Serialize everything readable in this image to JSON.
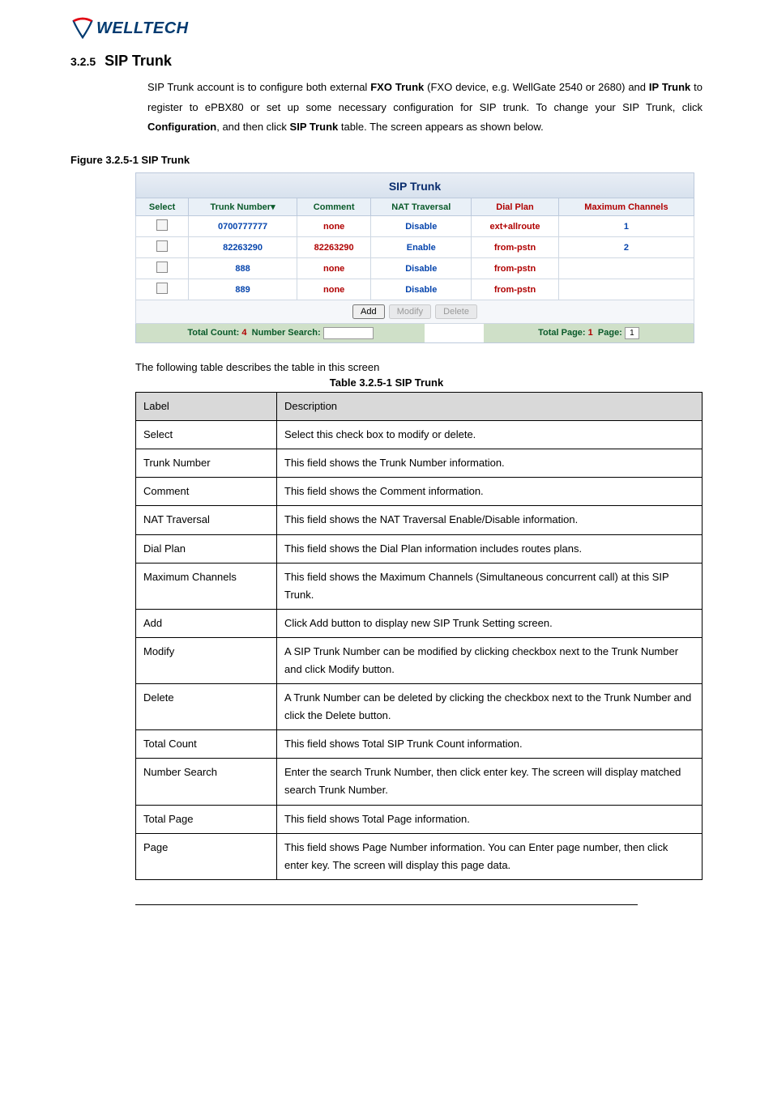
{
  "logo": {
    "text": "WELLTECH"
  },
  "section": {
    "num": "3.2.5",
    "title": "SIP Trunk"
  },
  "intro": "SIP Trunk account is to configure both external <b>FXO Trunk</b> (FXO device, e.g. WellGate 2540 or 2680) and <b>IP Trunk</b> to register to ePBX80 or set up some necessary configuration for SIP trunk. To change your SIP Trunk, click <b>Configuration</b>, and then click <b>SIP Trunk</b> table. The screen appears as shown below.",
  "fig_caption": "Figure    3.2.5-1 SIP Trunk",
  "sip": {
    "title": "SIP Trunk",
    "headers": [
      "Select",
      "Trunk Number▾",
      "Comment",
      "NAT Traversal",
      "Dial Plan",
      "Maximum Channels"
    ],
    "rows": [
      {
        "trunk": "0700777777",
        "comment": "none",
        "nat": "Disable",
        "plan": "ext+allroute",
        "max": "1"
      },
      {
        "trunk": "82263290",
        "comment": "82263290",
        "nat": "Enable",
        "plan": "from-pstn",
        "max": "2"
      },
      {
        "trunk": "888",
        "comment": "none",
        "nat": "Disable",
        "plan": "from-pstn",
        "max": ""
      },
      {
        "trunk": "889",
        "comment": "none",
        "nat": "Disable",
        "plan": "from-pstn",
        "max": ""
      }
    ],
    "buttons": {
      "add": "Add",
      "modify": "Modify",
      "delete": "Delete"
    },
    "footer": {
      "total_count_label": "Total Count:",
      "total_count": "4",
      "search_label": "Number Search:",
      "total_page_label": "Total Page:",
      "total_page": "1",
      "page_label": "Page:",
      "page": "1"
    }
  },
  "desc_line": "The following table describes the table in this screen",
  "tbl_caption": "Table 3.2.5-1 SIP Trunk",
  "desc": {
    "head": [
      "Label",
      "Description"
    ],
    "rows": [
      [
        "Select",
        "Select this check box to modify or delete."
      ],
      [
        "Trunk Number",
        "This field shows the Trunk Number information."
      ],
      [
        "Comment",
        "This field shows the Comment information."
      ],
      [
        "NAT Traversal",
        "This field shows the NAT Traversal Enable/Disable information."
      ],
      [
        "Dial Plan",
        "This field shows the Dial Plan information includes routes plans."
      ],
      [
        "Maximum Channels",
        "This field shows the Maximum Channels (Simultaneous concurrent call) at this SIP Trunk."
      ],
      [
        "Add",
        "Click Add button to display new SIP Trunk Setting screen."
      ],
      [
        "Modify",
        "A SIP Trunk Number can be modified by clicking checkbox next to the Trunk Number and click Modify button."
      ],
      [
        "Delete",
        "A Trunk Number can be deleted by clicking the checkbox next to the Trunk Number and click the Delete button."
      ],
      [
        "Total Count",
        "This field shows Total SIP Trunk Count information."
      ],
      [
        "Number Search",
        "Enter the search Trunk Number, then click enter key. The screen will display matched search Trunk Number."
      ],
      [
        "Total Page",
        "This field shows Total Page information."
      ],
      [
        "Page",
        "This field shows Page Number information. You can Enter page number, then click enter key. The screen will display this page data."
      ]
    ]
  }
}
